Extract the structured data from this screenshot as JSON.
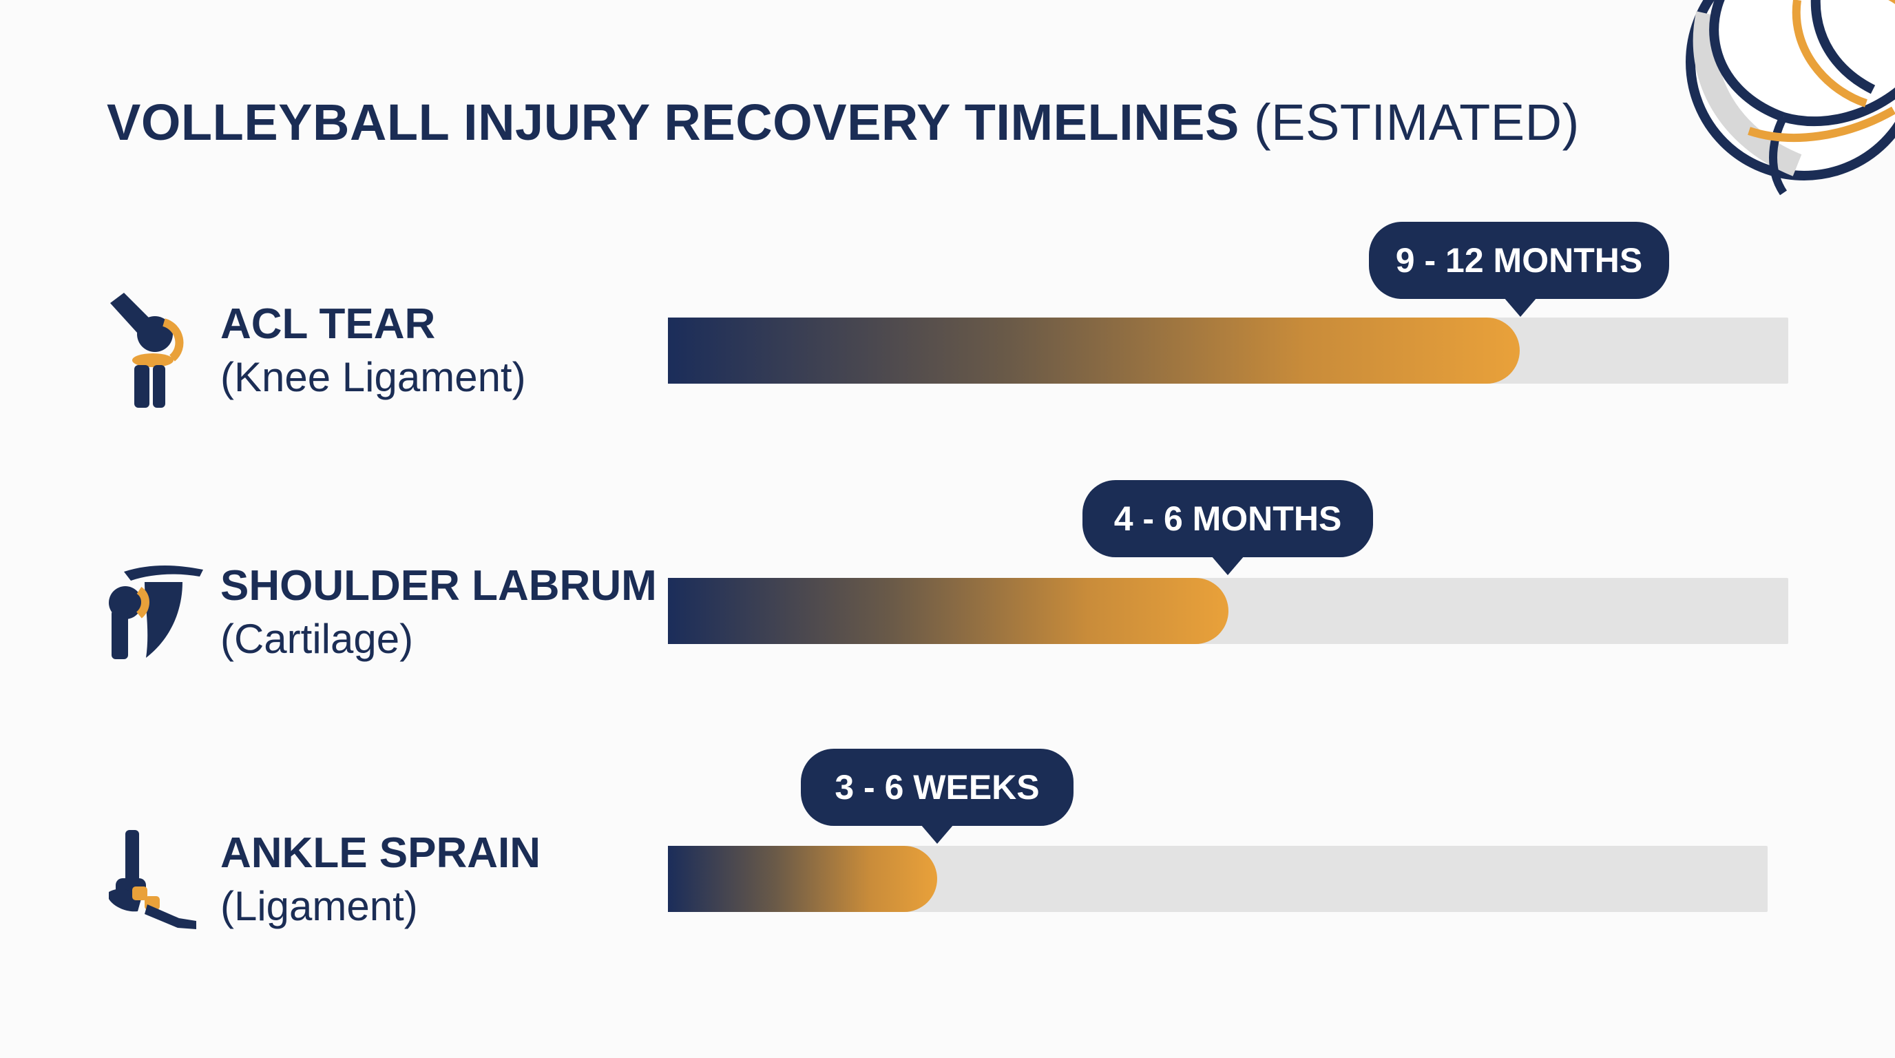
{
  "title": {
    "main": "VOLLEYBALL INJURY RECOVERY TIMELINES",
    "suffix": "(ESTIMATED)"
  },
  "colors": {
    "navy": "#1b2d55",
    "orange": "#e9a13a",
    "track": "#e3e3e3"
  },
  "chart_data": {
    "type": "bar",
    "orientation": "horizontal",
    "title": "VOLLEYBALL INJURY RECOVERY TIMELINES (ESTIMATED)",
    "categories": [
      "ACL TEAR (Knee Ligament)",
      "SHOULDER LABRUM (Cartilage)",
      "ANKLE SPRAIN (Ligament)"
    ],
    "values_fraction_of_track": [
      0.76,
      0.5,
      0.245
    ],
    "grid": false,
    "legend": "none",
    "rows": [
      {
        "name": "ACL TEAR",
        "detail": "(Knee Ligament)",
        "value_label": "9 - 12 MONTHS",
        "fill_fraction": 0.76,
        "icon": "knee-joint-icon"
      },
      {
        "name": "SHOULDER LABRUM",
        "detail": "(Cartilage)",
        "value_label": "4 - 6 MONTHS",
        "fill_fraction": 0.5,
        "icon": "shoulder-joint-icon"
      },
      {
        "name": "ANKLE SPRAIN",
        "detail": "(Ligament)",
        "value_label": "3 - 6 WEEKS",
        "fill_fraction": 0.245,
        "icon": "ankle-joint-icon"
      }
    ]
  }
}
